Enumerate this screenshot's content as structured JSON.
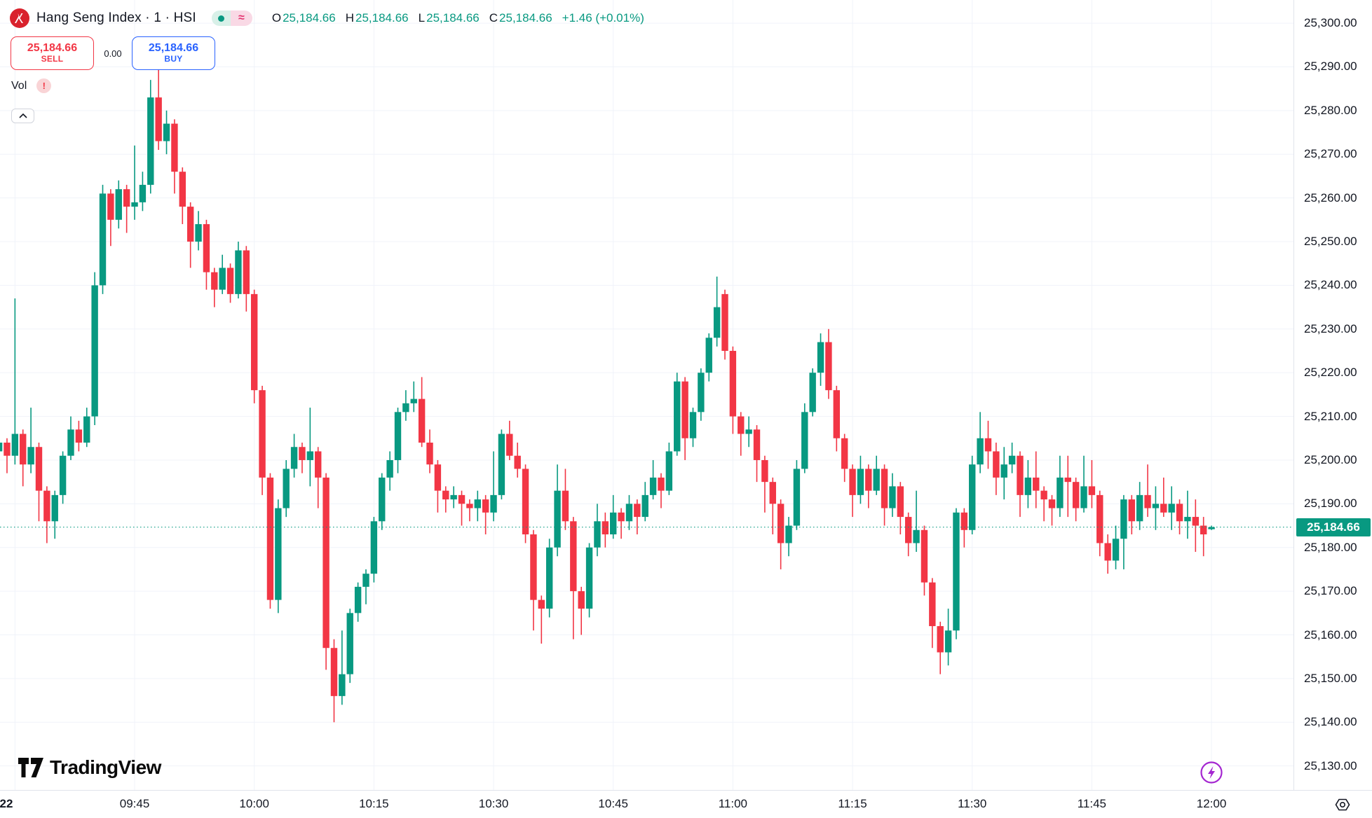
{
  "header": {
    "symbol_title": "Hang Seng Index · 1 · HSI",
    "ohlc": {
      "o_label": "O",
      "o": "25,184.66",
      "h_label": "H",
      "h": "25,184.66",
      "l_label": "L",
      "l": "25,184.66",
      "c_label": "C",
      "c": "25,184.66",
      "change": "+1.46 (+0.01%)"
    },
    "status_approx_glyph": "≈",
    "sell_button": {
      "price": "25,184.66",
      "label": "SELL"
    },
    "buy_button": {
      "price": "25,184.66",
      "label": "BUY"
    },
    "spread": "0.00",
    "indicator": {
      "label": "Vol",
      "warning_glyph": "!"
    }
  },
  "watermark": {
    "brand": "TradingView"
  },
  "colors": {
    "up": "#089981",
    "down": "#f23645",
    "grid": "#f0f3fa",
    "axis_text": "#131722",
    "last_price_line": "#089981",
    "badge_bg": "#089981",
    "sell_red": "#f23645",
    "buy_blue": "#2962ff",
    "lightning_purple": "#a426d0"
  },
  "price_axis": {
    "last_price_label": "25,184.66",
    "ticks": [
      {
        "price": 25300,
        "label": "25,300.00"
      },
      {
        "price": 25290,
        "label": "25,290.00"
      },
      {
        "price": 25280,
        "label": "25,280.00"
      },
      {
        "price": 25270,
        "label": "25,270.00"
      },
      {
        "price": 25260,
        "label": "25,260.00"
      },
      {
        "price": 25250,
        "label": "25,250.00"
      },
      {
        "price": 25240,
        "label": "25,240.00"
      },
      {
        "price": 25230,
        "label": "25,230.00"
      },
      {
        "price": 25220,
        "label": "25,220.00"
      },
      {
        "price": 25210,
        "label": "25,210.00"
      },
      {
        "price": 25200,
        "label": "25,200.00"
      },
      {
        "price": 25190,
        "label": "25,190.00"
      },
      {
        "price": 25180,
        "label": "25,180.00"
      },
      {
        "price": 25170,
        "label": "25,170.00"
      },
      {
        "price": 25160,
        "label": "25,160.00"
      },
      {
        "price": 25150,
        "label": "25,150.00"
      },
      {
        "price": 25140,
        "label": "25,140.00"
      },
      {
        "price": 25130,
        "label": "25,130.00"
      }
    ]
  },
  "time_axis": {
    "ticks": [
      {
        "label": "22",
        "time": "09:30",
        "bold": true,
        "label_x": 9
      },
      {
        "label": "09:45",
        "time": "09:45"
      },
      {
        "label": "10:00",
        "time": "10:00"
      },
      {
        "label": "10:15",
        "time": "10:15"
      },
      {
        "label": "10:30",
        "time": "10:30"
      },
      {
        "label": "10:45",
        "time": "10:45"
      },
      {
        "label": "11:00",
        "time": "11:00"
      },
      {
        "label": "11:15",
        "time": "11:15"
      },
      {
        "label": "11:30",
        "time": "11:30"
      },
      {
        "label": "11:45",
        "time": "11:45"
      },
      {
        "label": "12:00",
        "time": "12:00"
      }
    ]
  },
  "chart_data": {
    "type": "candlestick",
    "title": "Hang Seng Index",
    "symbol": "HSI",
    "interval": "1",
    "last_price": 25184.66,
    "change": 1.46,
    "change_pct": 0.01,
    "price_axis_range": [
      25124.5,
      25305.3
    ],
    "grid": true,
    "candles": [
      [
        "09:28",
        25202,
        25206,
        25200,
        25204
      ],
      [
        "09:29",
        25204,
        25205,
        25197,
        25201
      ],
      [
        "09:30",
        25201,
        25237,
        25199,
        25206
      ],
      [
        "09:31",
        25206,
        25207,
        25194,
        25199
      ],
      [
        "09:32",
        25199,
        25212,
        25197,
        25203
      ],
      [
        "09:33",
        25203,
        25204,
        25186,
        25193
      ],
      [
        "09:34",
        25193,
        25194,
        25181,
        25186
      ],
      [
        "09:35",
        25186,
        25193,
        25182,
        25192
      ],
      [
        "09:36",
        25192,
        25202,
        25190,
        25201
      ],
      [
        "09:37",
        25201,
        25210,
        25200,
        25207
      ],
      [
        "09:38",
        25207,
        25209,
        25202,
        25204
      ],
      [
        "09:39",
        25204,
        25212,
        25203,
        25210
      ],
      [
        "09:40",
        25210,
        25243,
        25208,
        25240
      ],
      [
        "09:41",
        25240,
        25263,
        25238,
        25261
      ],
      [
        "09:42",
        25261,
        25262,
        25249,
        25255
      ],
      [
        "09:43",
        25255,
        25264,
        25253,
        25262
      ],
      [
        "09:44",
        25262,
        25263,
        25252,
        25258
      ],
      [
        "09:45",
        25258,
        25272,
        25255,
        25259
      ],
      [
        "09:46",
        25259,
        25266,
        25257,
        25263
      ],
      [
        "09:47",
        25263,
        25287,
        25261,
        25283
      ],
      [
        "09:48",
        25283,
        25290,
        25271,
        25273
      ],
      [
        "09:49",
        25273,
        25280,
        25270,
        25277
      ],
      [
        "09:50",
        25277,
        25278,
        25261,
        25266
      ],
      [
        "09:51",
        25266,
        25267,
        25254,
        25258
      ],
      [
        "09:52",
        25258,
        25259,
        25244,
        25250
      ],
      [
        "09:53",
        25250,
        25257,
        25248,
        25254
      ],
      [
        "09:54",
        25254,
        25255,
        25239,
        25243
      ],
      [
        "09:55",
        25243,
        25244,
        25235,
        25239
      ],
      [
        "09:56",
        25239,
        25247,
        25238,
        25244
      ],
      [
        "09:57",
        25244,
        25245,
        25236,
        25238
      ],
      [
        "09:58",
        25238,
        25250,
        25237,
        25248
      ],
      [
        "09:59",
        25248,
        25249,
        25234,
        25238
      ],
      [
        "10:00",
        25238,
        25239,
        25213,
        25216
      ],
      [
        "10:01",
        25216,
        25217,
        25192,
        25196
      ],
      [
        "10:02",
        25196,
        25197,
        25166,
        25168
      ],
      [
        "10:03",
        25168,
        25191,
        25165,
        25189
      ],
      [
        "10:04",
        25189,
        25200,
        25187,
        25198
      ],
      [
        "10:05",
        25198,
        25206,
        25196,
        25203
      ],
      [
        "10:06",
        25203,
        25204,
        25197,
        25200
      ],
      [
        "10:07",
        25200,
        25212,
        25194,
        25202
      ],
      [
        "10:08",
        25202,
        25203,
        25189,
        25196
      ],
      [
        "10:09",
        25196,
        25197,
        25152,
        25157
      ],
      [
        "10:10",
        25157,
        25159,
        25140,
        25146
      ],
      [
        "10:11",
        25146,
        25161,
        25144,
        25151
      ],
      [
        "10:12",
        25151,
        25166,
        25149,
        25165
      ],
      [
        "10:13",
        25165,
        25172,
        25163,
        25171
      ],
      [
        "10:14",
        25171,
        25175,
        25167,
        25174
      ],
      [
        "10:15",
        25174,
        25187,
        25172,
        25186
      ],
      [
        "10:16",
        25186,
        25197,
        25184,
        25196
      ],
      [
        "10:17",
        25196,
        25202,
        25193,
        25200
      ],
      [
        "10:18",
        25200,
        25212,
        25197,
        25211
      ],
      [
        "10:19",
        25211,
        25216,
        25209,
        25213
      ],
      [
        "10:20",
        25213,
        25218,
        25211,
        25214
      ],
      [
        "10:21",
        25214,
        25219,
        25203,
        25204
      ],
      [
        "10:22",
        25204,
        25207,
        25197,
        25199
      ],
      [
        "10:23",
        25199,
        25200,
        25188,
        25193
      ],
      [
        "10:24",
        25193,
        25194,
        25188,
        25191
      ],
      [
        "10:25",
        25191,
        25194,
        25189,
        25192
      ],
      [
        "10:26",
        25192,
        25193,
        25185,
        25190
      ],
      [
        "10:27",
        25190,
        25191,
        25186,
        25189
      ],
      [
        "10:28",
        25189,
        25193,
        25186,
        25191
      ],
      [
        "10:29",
        25191,
        25192,
        25183,
        25188
      ],
      [
        "10:30",
        25188,
        25202,
        25186,
        25192
      ],
      [
        "10:31",
        25192,
        25207,
        25191,
        25206
      ],
      [
        "10:32",
        25206,
        25209,
        25200,
        25201
      ],
      [
        "10:33",
        25201,
        25204,
        25196,
        25198
      ],
      [
        "10:34",
        25198,
        25199,
        25181,
        25183
      ],
      [
        "10:35",
        25183,
        25184,
        25161,
        25168
      ],
      [
        "10:36",
        25168,
        25169,
        25158,
        25166
      ],
      [
        "10:37",
        25166,
        25182,
        25164,
        25180
      ],
      [
        "10:38",
        25180,
        25199,
        25178,
        25193
      ],
      [
        "10:39",
        25193,
        25198,
        25184,
        25186
      ],
      [
        "10:40",
        25186,
        25187,
        25159,
        25170
      ],
      [
        "10:41",
        25170,
        25171,
        25160,
        25166
      ],
      [
        "10:42",
        25166,
        25181,
        25164,
        25180
      ],
      [
        "10:43",
        25180,
        25190,
        25178,
        25186
      ],
      [
        "10:44",
        25186,
        25188,
        25180,
        25183
      ],
      [
        "10:45",
        25183,
        25192,
        25182,
        25188
      ],
      [
        "10:46",
        25188,
        25189,
        25182,
        25186
      ],
      [
        "10:47",
        25186,
        25192,
        25184,
        25190
      ],
      [
        "10:48",
        25190,
        25191,
        25183,
        25187
      ],
      [
        "10:49",
        25187,
        25195,
        25186,
        25192
      ],
      [
        "10:50",
        25192,
        25200,
        25191,
        25196
      ],
      [
        "10:51",
        25196,
        25197,
        25189,
        25193
      ],
      [
        "10:52",
        25193,
        25204,
        25192,
        25202
      ],
      [
        "10:53",
        25202,
        25220,
        25201,
        25218
      ],
      [
        "10:54",
        25218,
        25219,
        25200,
        25205
      ],
      [
        "10:55",
        25205,
        25212,
        25203,
        25211
      ],
      [
        "10:56",
        25211,
        25221,
        25209,
        25220
      ],
      [
        "10:57",
        25220,
        25229,
        25218,
        25228
      ],
      [
        "10:58",
        25228,
        25242,
        25226,
        25235
      ],
      [
        "10:59",
        25238,
        25239,
        25223,
        25225
      ],
      [
        "11:00",
        25225,
        25226,
        25206,
        25210
      ],
      [
        "11:01",
        25210,
        25211,
        25201,
        25206
      ],
      [
        "11:02",
        25206,
        25210,
        25203,
        25207
      ],
      [
        "11:03",
        25207,
        25208,
        25195,
        25200
      ],
      [
        "11:04",
        25200,
        25201,
        25188,
        25195
      ],
      [
        "11:05",
        25195,
        25196,
        25183,
        25190
      ],
      [
        "11:06",
        25190,
        25191,
        25175,
        25181
      ],
      [
        "11:07",
        25181,
        25187,
        25178,
        25185
      ],
      [
        "11:08",
        25185,
        25200,
        25184,
        25198
      ],
      [
        "11:09",
        25198,
        25213,
        25197,
        25211
      ],
      [
        "11:10",
        25211,
        25221,
        25210,
        25220
      ],
      [
        "11:11",
        25220,
        25229,
        25217,
        25227
      ],
      [
        "11:12",
        25227,
        25230,
        25214,
        25216
      ],
      [
        "11:13",
        25216,
        25217,
        25202,
        25205
      ],
      [
        "11:14",
        25205,
        25206,
        25195,
        25198
      ],
      [
        "11:15",
        25198,
        25199,
        25187,
        25192
      ],
      [
        "11:16",
        25192,
        25201,
        25190,
        25198
      ],
      [
        "11:17",
        25198,
        25199,
        25189,
        25193
      ],
      [
        "11:18",
        25193,
        25201,
        25192,
        25198
      ],
      [
        "11:19",
        25198,
        25199,
        25185,
        25189
      ],
      [
        "11:20",
        25189,
        25197,
        25187,
        25194
      ],
      [
        "11:21",
        25194,
        25195,
        25183,
        25187
      ],
      [
        "11:22",
        25187,
        25188,
        25178,
        25181
      ],
      [
        "11:23",
        25181,
        25193,
        25179,
        25184
      ],
      [
        "11:24",
        25184,
        25185,
        25169,
        25172
      ],
      [
        "11:25",
        25172,
        25173,
        25157,
        25162
      ],
      [
        "11:26",
        25162,
        25163,
        25151,
        25156
      ],
      [
        "11:27",
        25156,
        25166,
        25153,
        25161
      ],
      [
        "11:28",
        25161,
        25189,
        25159,
        25188
      ],
      [
        "11:29",
        25188,
        25189,
        25180,
        25184
      ],
      [
        "11:30",
        25184,
        25201,
        25183,
        25199
      ],
      [
        "11:31",
        25199,
        25211,
        25197,
        25205
      ],
      [
        "11:32",
        25205,
        25209,
        25198,
        25202
      ],
      [
        "11:33",
        25202,
        25204,
        25192,
        25196
      ],
      [
        "11:34",
        25196,
        25203,
        25191,
        25199
      ],
      [
        "11:35",
        25199,
        25204,
        25197,
        25201
      ],
      [
        "11:36",
        25201,
        25202,
        25187,
        25192
      ],
      [
        "11:37",
        25192,
        25200,
        25189,
        25196
      ],
      [
        "11:38",
        25196,
        25202,
        25189,
        25193
      ],
      [
        "11:39",
        25193,
        25194,
        25186,
        25191
      ],
      [
        "11:40",
        25191,
        25192,
        25185,
        25189
      ],
      [
        "11:41",
        25189,
        25201,
        25187,
        25196
      ],
      [
        "11:42",
        25196,
        25201,
        25187,
        25195
      ],
      [
        "11:43",
        25195,
        25196,
        25186,
        25189
      ],
      [
        "11:44",
        25189,
        25201,
        25188,
        25194
      ],
      [
        "11:45",
        25194,
        25200,
        25189,
        25192
      ],
      [
        "11:46",
        25192,
        25193,
        25178,
        25181
      ],
      [
        "11:47",
        25181,
        25183,
        25174,
        25177
      ],
      [
        "11:48",
        25177,
        25185,
        25175,
        25182
      ],
      [
        "11:49",
        25182,
        25192,
        25175,
        25191
      ],
      [
        "11:50",
        25191,
        25192,
        25183,
        25186
      ],
      [
        "11:51",
        25186,
        25195,
        25184,
        25192
      ],
      [
        "11:52",
        25192,
        25199,
        25187,
        25189
      ],
      [
        "11:53",
        25189,
        25194,
        25184,
        25190
      ],
      [
        "11:54",
        25190,
        25196,
        25187,
        25188
      ],
      [
        "11:55",
        25188,
        25194,
        25184,
        25190
      ],
      [
        "11:56",
        25190,
        25191,
        25183,
        25186
      ],
      [
        "11:57",
        25186,
        25193,
        25182,
        25187
      ],
      [
        "11:58",
        25187,
        25191,
        25179,
        25185
      ],
      [
        "11:59",
        25185,
        25187,
        25178,
        25183
      ],
      [
        "12:00",
        25184.5,
        25185,
        25184,
        25184.66
      ]
    ]
  }
}
